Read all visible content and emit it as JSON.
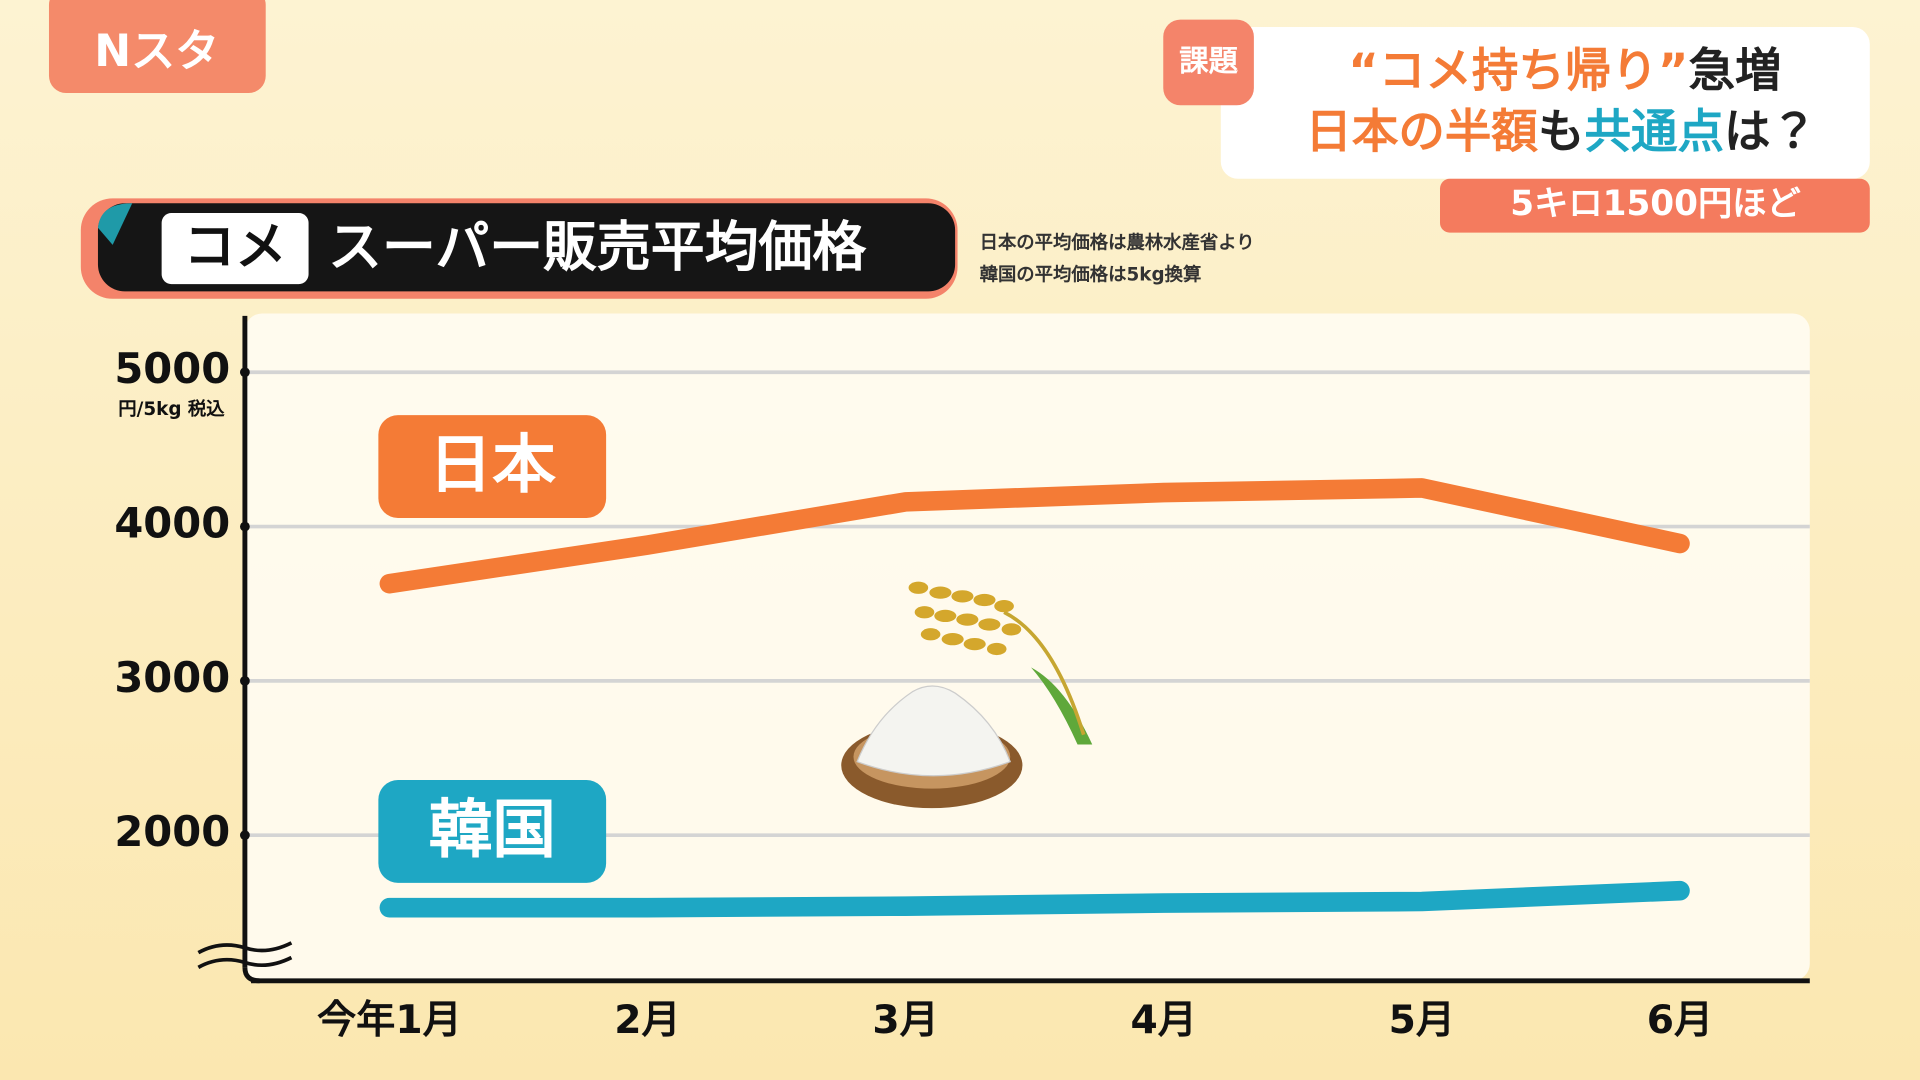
{
  "header": {
    "logo": "Nスタ",
    "tag": "課題",
    "headline_line1": [
      "“コメ持ち帰り”",
      "急増"
    ],
    "headline_line2": [
      "日本の半額",
      "も",
      "共通点",
      "は？"
    ],
    "subhead": "5キロ1500円ほど"
  },
  "chart_data": {
    "type": "line",
    "title_tag": "コメ",
    "title": "スーパー販売平均価格",
    "notes": [
      "日本の平均価格は農林水産省より",
      "韓国の平均価格は5kg換算"
    ],
    "y_unit": "円/5kg 税込",
    "categories": [
      "今年1月",
      "2月",
      "3月",
      "4月",
      "5月",
      "6月"
    ],
    "series": [
      {
        "name": "日本",
        "color": "#f47b36",
        "values": [
          3630,
          3880,
          4160,
          4220,
          4250,
          3890
        ]
      },
      {
        "name": "韓国",
        "color": "#1ea7c4",
        "values": [
          1530,
          1530,
          1540,
          1560,
          1570,
          1640
        ]
      }
    ],
    "ylim": [
      1064,
      5365
    ],
    "yticks": [
      2000,
      3000,
      4000,
      5000
    ],
    "grid": true
  }
}
